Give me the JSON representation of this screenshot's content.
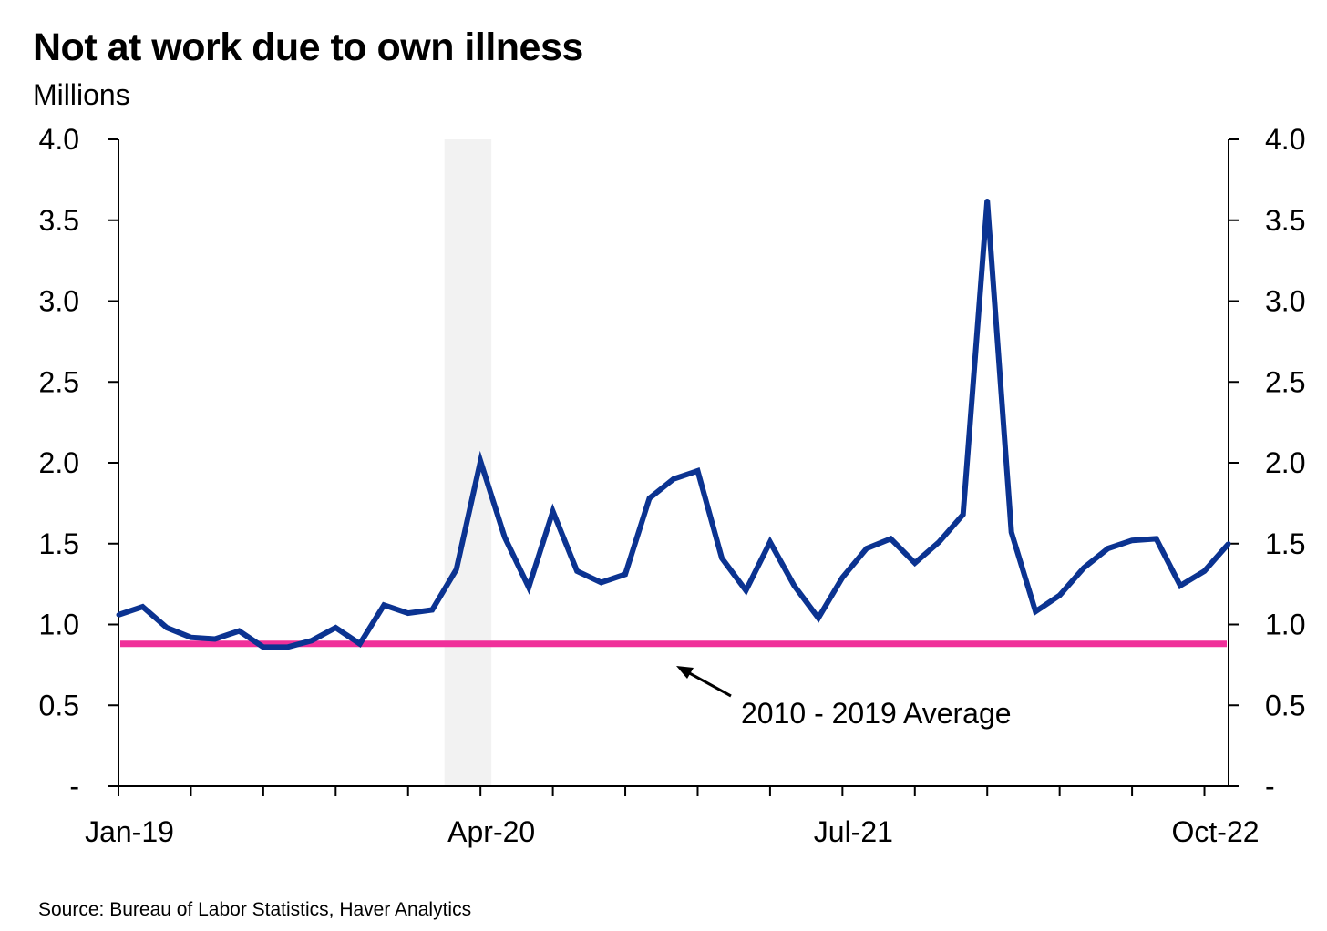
{
  "chart_data": {
    "type": "line",
    "title": "Not at work due to own illness",
    "subtitle": "Millions",
    "ylim": [
      0,
      4.0
    ],
    "y_ticks": [
      "-",
      "0.5",
      "1.0",
      "1.5",
      "2.0",
      "2.5",
      "3.0",
      "3.5",
      "4.0"
    ],
    "x_tick_labels": [
      "Jan-19",
      "Apr-20",
      "Jul-21",
      "Oct-22"
    ],
    "x_start": "2019-01",
    "x_end": "2022-11",
    "grid": false,
    "dual_y_axis": true,
    "recession_shading": {
      "start": "2020-03",
      "end": "2020-04"
    },
    "series": [
      {
        "name": "",
        "color": "#0b3391",
        "x": [
          "2019-01",
          "2019-02",
          "2019-03",
          "2019-04",
          "2019-05",
          "2019-06",
          "2019-07",
          "2019-08",
          "2019-09",
          "2019-10",
          "2019-11",
          "2019-12",
          "2020-01",
          "2020-02",
          "2020-03",
          "2020-04",
          "2020-05",
          "2020-06",
          "2020-07",
          "2020-08",
          "2020-09",
          "2020-10",
          "2020-11",
          "2020-12",
          "2021-01",
          "2021-02",
          "2021-03",
          "2021-04",
          "2021-05",
          "2021-06",
          "2021-07",
          "2021-08",
          "2021-09",
          "2021-10",
          "2021-11",
          "2021-12",
          "2022-01",
          "2022-02",
          "2022-03",
          "2022-04",
          "2022-05",
          "2022-06",
          "2022-07",
          "2022-08",
          "2022-09",
          "2022-10",
          "2022-11"
        ],
        "values": [
          1.06,
          1.11,
          0.98,
          0.92,
          0.91,
          0.96,
          0.86,
          0.86,
          0.9,
          0.98,
          0.88,
          1.12,
          1.07,
          1.09,
          1.34,
          2.01,
          1.54,
          1.23,
          1.7,
          1.33,
          1.26,
          1.31,
          1.78,
          1.9,
          1.95,
          1.41,
          1.21,
          1.51,
          1.24,
          1.04,
          1.29,
          1.47,
          1.53,
          1.38,
          1.51,
          1.68,
          3.62,
          1.57,
          1.08,
          1.18,
          1.35,
          1.47,
          1.52,
          1.53,
          1.24,
          1.33,
          1.5
        ]
      },
      {
        "name": "2010 - 2019 Average",
        "color": "#f0309a",
        "constant": 0.88
      }
    ],
    "annotations": [
      {
        "text": "2010 - 2019 Average",
        "points_to": "2010 - 2019 Average"
      }
    ]
  },
  "source": "Source: Bureau of Labor Statistics, Haver Analytics",
  "colors": {
    "series_line": "#0b3391",
    "average_line": "#f0309a",
    "shading": "#f2f2f2",
    "axis": "#000000"
  }
}
